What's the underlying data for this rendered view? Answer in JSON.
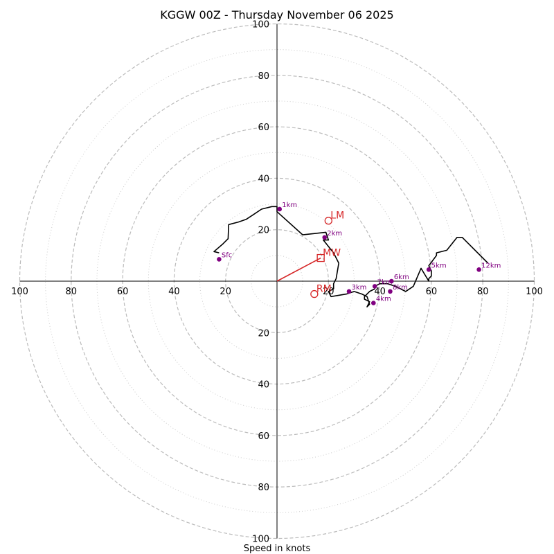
{
  "chart_data": {
    "type": "hodograph",
    "title": "KGGW 00Z - Thursday November 06 2025",
    "xlabel": "Speed in knots",
    "units": "knots",
    "range": [
      -100,
      100
    ],
    "major_rings": [
      20,
      40,
      60,
      80,
      100
    ],
    "minor_rings": [
      10,
      30,
      50,
      70,
      90
    ],
    "tick_values": [
      20,
      40,
      60,
      80,
      100
    ],
    "tick_labels": [
      "20",
      "40",
      "60",
      "80",
      "100"
    ],
    "hodograph_trace": [
      [
        -22.5,
        11
      ],
      [
        -24.5,
        11.5
      ],
      [
        -21,
        14.5
      ],
      [
        -19,
        16.5
      ],
      [
        -18.8,
        22
      ],
      [
        -15,
        23
      ],
      [
        -12,
        24
      ],
      [
        -9,
        26
      ],
      [
        -6,
        28
      ],
      [
        -2,
        29
      ],
      [
        0,
        29
      ],
      [
        0,
        27
      ],
      [
        10,
        18
      ],
      [
        19,
        19
      ],
      [
        20,
        16
      ],
      [
        18,
        16
      ],
      [
        22,
        11
      ],
      [
        24,
        7
      ],
      [
        23,
        1
      ],
      [
        22,
        -1
      ],
      [
        22,
        -3
      ],
      [
        20,
        -4
      ],
      [
        21,
        -6
      ],
      [
        27,
        -5
      ],
      [
        30,
        -4
      ],
      [
        33,
        -5
      ],
      [
        35,
        -6
      ],
      [
        36,
        -9
      ],
      [
        35,
        -10
      ],
      [
        36,
        -8
      ],
      [
        34,
        -7
      ],
      [
        34,
        -6
      ],
      [
        36,
        -4
      ],
      [
        38,
        -3
      ],
      [
        38,
        -2
      ],
      [
        40,
        -1
      ],
      [
        43,
        -1
      ],
      [
        46,
        -2
      ],
      [
        50,
        -4
      ],
      [
        53,
        -2
      ],
      [
        56,
        5
      ],
      [
        59,
        0
      ],
      [
        59,
        1
      ],
      [
        60,
        2
      ],
      [
        60,
        4
      ],
      [
        59,
        6
      ],
      [
        62,
        10
      ],
      [
        62,
        11
      ],
      [
        66,
        12
      ],
      [
        70,
        17
      ],
      [
        72,
        17
      ],
      [
        82,
        7
      ]
    ],
    "height_markers": [
      {
        "label": "Sfc",
        "u": -22.5,
        "v": 8.5
      },
      {
        "label": "1km",
        "u": 1,
        "v": 28
      },
      {
        "label": "2km",
        "u": 18.5,
        "v": 17
      },
      {
        "label": "3km",
        "u": 28,
        "v": -4
      },
      {
        "label": "4km",
        "u": 37.5,
        "v": -8.5
      },
      {
        "label": "5km",
        "u": 59,
        "v": 4.5
      },
      {
        "label": "6km",
        "u": 44.5,
        "v": 0
      },
      {
        "label": "7km",
        "u": 38,
        "v": -2
      },
      {
        "label": "8km",
        "u": 44,
        "v": -4
      },
      {
        "label": "12km",
        "u": 78.5,
        "v": 4.5
      }
    ],
    "storm_motion": {
      "mean_wind": {
        "label": "MW",
        "u": 17,
        "v": 9
      },
      "left_mover": {
        "label": "LM",
        "u": 20,
        "v": 23.5
      },
      "right_mover": {
        "label": "RM",
        "u": 14.5,
        "v": -5
      }
    },
    "colors": {
      "trace": "#000000",
      "markers": "#800080",
      "storm_motion": "#d62728",
      "grid": "#bbbbbb"
    }
  }
}
